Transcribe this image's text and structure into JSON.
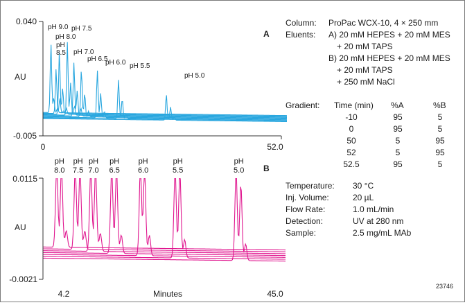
{
  "figure_id": "23746",
  "conditions": {
    "column": {
      "label": "Column:",
      "value": "ProPac WCX-10, 4 × 250 mm"
    },
    "eluents": {
      "label": "Eluents:",
      "lines": [
        "A) 20 mM HEPES + 20 mM MES",
        "+ 20 mM TAPS",
        "B) 20 mM HEPES + 20 mM MES",
        "+ 20 mM TAPS",
        "+ 250 mM NaCl"
      ]
    },
    "gradient": {
      "label": "Gradient:",
      "headers": [
        "Time (min)",
        "%A",
        "%B"
      ],
      "rows": [
        [
          "-10",
          "95",
          "5"
        ],
        [
          "0",
          "95",
          "5"
        ],
        [
          "50",
          "5",
          "95"
        ],
        [
          "52",
          "5",
          "95"
        ],
        [
          "52.5",
          "95",
          "5"
        ]
      ]
    },
    "params": [
      {
        "label": "Temperature:",
        "value": "30 °C"
      },
      {
        "label": "Inj. Volume:",
        "value": "20 µL"
      },
      {
        "label": "Flow Rate:",
        "value": "1.0 mL/min"
      },
      {
        "label": "Detection:",
        "value": "UV at 280 nm"
      },
      {
        "label": "Sample:",
        "value": "2.5 mg/mL MAb"
      }
    ]
  },
  "colors": {
    "A": "#2aa7df",
    "B": "#e0168f"
  },
  "chart_data": [
    {
      "panel": "A",
      "type": "line",
      "ylabel": "AU",
      "y_ticks": [
        "0.040",
        "-0.005"
      ],
      "x_ticks": [
        "0",
        "52.0"
      ],
      "xlim": [
        0,
        52.0
      ],
      "ylim": [
        -0.005,
        0.04
      ],
      "series": [
        {
          "name": "pH 9.0",
          "peaks": [
            [
              1.7,
              0.0315
            ],
            [
              2.3,
              0.01
            ],
            [
              3.1,
              0.006
            ]
          ]
        },
        {
          "name": "pH 8.5",
          "peaks": [
            [
              2.8,
              0.0215
            ],
            [
              3.6,
              0.01
            ],
            [
              4.4,
              0.005
            ]
          ]
        },
        {
          "name": "pH 8.0",
          "peaks": [
            [
              3.5,
              0.0285
            ],
            [
              4.2,
              0.014
            ],
            [
              5.0,
              0.006
            ]
          ]
        },
        {
          "name": "pH 7.5",
          "peaks": [
            [
              5.2,
              0.032
            ],
            [
              5.9,
              0.016
            ],
            [
              6.7,
              0.007
            ]
          ]
        },
        {
          "name": "pH 7.0",
          "peaks": [
            [
              6.6,
              0.024
            ],
            [
              7.3,
              0.013
            ],
            [
              8.1,
              0.006
            ]
          ]
        },
        {
          "name": "pH 6.5",
          "peaks": [
            [
              8.2,
              0.0215
            ],
            [
              8.9,
              0.012
            ],
            [
              9.7,
              0.005
            ]
          ]
        },
        {
          "name": "pH 6.0",
          "peaks": [
            [
              11.6,
              0.021
            ],
            [
              12.3,
              0.012
            ],
            [
              13.1,
              0.005
            ]
          ]
        },
        {
          "name": "pH 5.5",
          "peaks": [
            [
              16.1,
              0.0175
            ],
            [
              16.9,
              0.01
            ],
            [
              17.7,
              0.004
            ]
          ]
        },
        {
          "name": "pH 5.0",
          "peaks": [
            [
              26.3,
              0.012
            ],
            [
              27.2,
              0.007
            ],
            [
              28.0,
              0.003
            ]
          ]
        }
      ]
    },
    {
      "panel": "B",
      "type": "line",
      "ylabel": "AU",
      "xlabel": "Minutes",
      "y_ticks": [
        "0.0115",
        "-0.0021"
      ],
      "x_ticks": [
        "4.2",
        "45.0"
      ],
      "xlim": [
        4.2,
        45.0
      ],
      "ylim": [
        -0.0021,
        0.0115
      ],
      "series": [
        {
          "name": "pH 8.0",
          "peaks": [
            [
              6.5,
              0.013
            ],
            [
              7.3,
              0.0128
            ],
            [
              8.1,
              0.0045
            ]
          ]
        },
        {
          "name": "pH 7.5",
          "peaks": [
            [
              9.6,
              0.013
            ],
            [
              10.4,
              0.0128
            ],
            [
              11.2,
              0.0045
            ]
          ]
        },
        {
          "name": "pH 7.0",
          "peaks": [
            [
              12.2,
              0.013
            ],
            [
              13.0,
              0.0128
            ],
            [
              13.8,
              0.0042
            ]
          ]
        },
        {
          "name": "pH 6.5",
          "peaks": [
            [
              15.7,
              0.013
            ],
            [
              16.5,
              0.0128
            ],
            [
              17.3,
              0.004
            ]
          ]
        },
        {
          "name": "pH 6.0",
          "peaks": [
            [
              20.5,
              0.013
            ],
            [
              21.2,
              0.0128
            ],
            [
              22.0,
              0.004
            ]
          ]
        },
        {
          "name": "pH 5.5",
          "peaks": [
            [
              26.3,
              0.013
            ],
            [
              27.1,
              0.0125
            ],
            [
              27.9,
              0.0035
            ]
          ]
        },
        {
          "name": "pH 5.0",
          "peaks": [
            [
              36.5,
              0.0128
            ],
            [
              37.3,
              0.011
            ],
            [
              38.1,
              0.003
            ]
          ]
        }
      ]
    }
  ]
}
